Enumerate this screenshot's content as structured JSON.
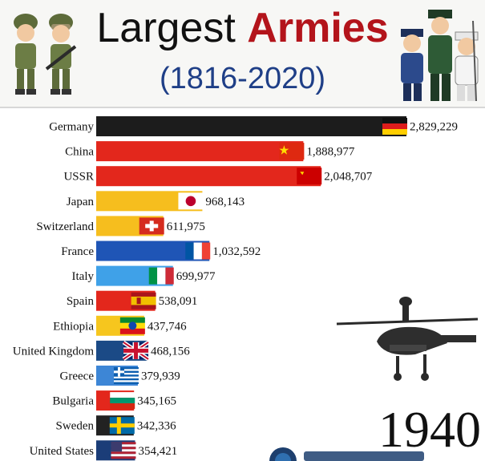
{
  "header": {
    "title_part1": "Largest",
    "title_part2": "Armies",
    "subtitle": "(1816-2020)"
  },
  "year_label": "1940",
  "colors": {
    "title_accent": "#b3141b",
    "subtitle": "#1f3f87"
  },
  "icons": [
    "soldiers-left-illustration",
    "soldiers-right-illustration",
    "helicopter-illustration",
    "channel-logo-partial"
  ],
  "chart_data": {
    "type": "bar",
    "orientation": "horizontal",
    "title": "Largest Armies",
    "subtitle": "(1816-2020)",
    "categories": [
      "Germany",
      "China",
      "USSR",
      "Japan",
      "Switzerland",
      "France",
      "Italy",
      "Spain",
      "Ethiopia",
      "United Kingdom",
      "Greece",
      "Bulgaria",
      "Sweden",
      "United States"
    ],
    "values": [
      2829229,
      1888977,
      2048707,
      968143,
      611975,
      1032592,
      699977,
      538091,
      437746,
      468156,
      379939,
      345165,
      342336,
      354421
    ],
    "value_labels": [
      "2,829,229",
      "1,888,977",
      "2,048,707",
      "968,143",
      "611,975",
      "1,032,592",
      "699,977",
      "538,091",
      "437,746",
      "468,156",
      "379,939",
      "345,165",
      "342,336",
      "354,421"
    ],
    "bar_colors": [
      "#1c1c1c",
      "#e3271c",
      "#e3271c",
      "#f6be1e",
      "#f6be1e",
      "#1f55b6",
      "#3fa1e8",
      "#e3271c",
      "#f6c61e",
      "#1b4a86",
      "#3d86d6",
      "#e3271c",
      "#222222",
      "#1b3d78"
    ],
    "flags": [
      "germany",
      "china",
      "ussr",
      "japan",
      "switzerland",
      "france",
      "italy",
      "spain",
      "ethiopia",
      "united-kingdom",
      "greece",
      "bulgaria",
      "sweden",
      "united-states"
    ],
    "xlim": [
      0,
      2829229
    ],
    "grid": false,
    "legend": "none"
  }
}
